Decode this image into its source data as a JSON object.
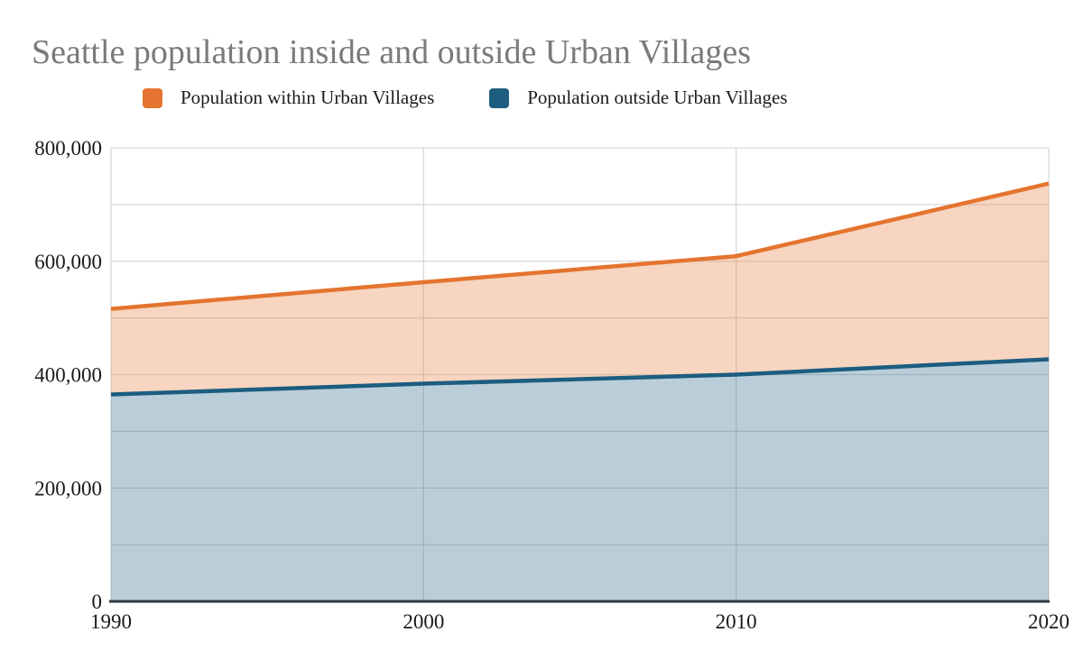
{
  "title": "Seattle population inside and outside Urban Villages",
  "legend": [
    {
      "label": "Population within Urban Villages",
      "color": "#e4742f"
    },
    {
      "label": "Population outside Urban Villages",
      "color": "#1c5d80"
    }
  ],
  "chart_data": {
    "type": "area",
    "stacked": true,
    "title": "Seattle population inside and outside Urban Villages",
    "x": [
      1990,
      2000,
      2010,
      2020
    ],
    "x_tick_labels": [
      "1990",
      "2000",
      "2010",
      "2020"
    ],
    "series": [
      {
        "name": "Population within Urban Villages",
        "values": [
          151000,
          179000,
          209000,
          310000
        ],
        "line_color": "#e4742f",
        "fill_opacity": 0.3
      },
      {
        "name": "Population outside Urban Villages",
        "values": [
          365000,
          384000,
          400000,
          427000
        ],
        "line_color": "#1c5d80",
        "fill_opacity": 0.3
      }
    ],
    "stacked_totals": [
      516000,
      563000,
      609000,
      737000
    ],
    "xlabel": "",
    "ylabel": "",
    "ylim": [
      0,
      800000
    ],
    "y_grid_step": 100000,
    "y_ticks": [
      0,
      200000,
      400000,
      600000,
      800000
    ],
    "y_tick_labels": [
      "0",
      "200,000",
      "400,000",
      "600,000",
      "800,000"
    ],
    "grid_on": true,
    "grid_color": "#d9d9d9",
    "axis_color": "#323a43",
    "tick_label_color": "#1a1a1a",
    "legend_position": "top"
  }
}
